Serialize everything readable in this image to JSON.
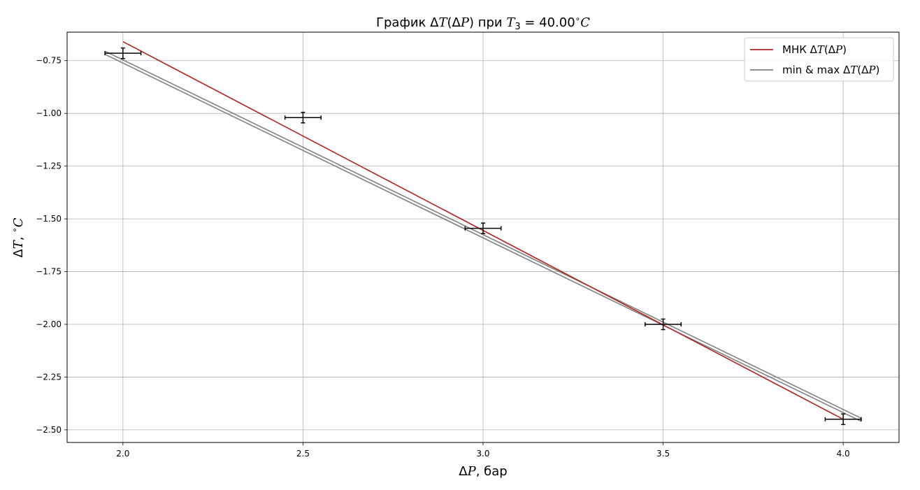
{
  "chart_data": {
    "type": "line",
    "title": "График ΔT(ΔP) при T₃ = 40.00°C",
    "title_parts": {
      "prefix": "График Δ",
      "t": "T",
      "open": "(Δ",
      "p": "P",
      "close": ") при ",
      "t3": "T",
      "sub": "3",
      "rest": " = 40.00",
      "deg": "∘",
      "c": "C"
    },
    "xlabel": "ΔP, бар",
    "xlabel_parts": {
      "delta": "Δ",
      "var": "P",
      "unit": ", бар"
    },
    "ylabel": "ΔT, °C",
    "ylabel_parts": {
      "delta": "Δ",
      "var": "T",
      "comma": ", ",
      "deg": "∘",
      "unit": "C"
    },
    "xlim": [
      1.845,
      4.155
    ],
    "ylim": [
      -2.56,
      -0.615
    ],
    "x_ticks": [
      2.0,
      2.5,
      3.0,
      3.5,
      4.0
    ],
    "x_tick_labels": [
      "2.0",
      "2.5",
      "3.0",
      "3.5",
      "4.0"
    ],
    "y_ticks": [
      -0.75,
      -1.0,
      -1.25,
      -1.5,
      -1.75,
      -2.0,
      -2.25,
      -2.5
    ],
    "y_tick_labels": [
      "−0.75",
      "−1.00",
      "−1.25",
      "−1.50",
      "−1.75",
      "−2.00",
      "−2.25",
      "−2.50"
    ],
    "grid": true,
    "legend_position": "top-right",
    "legend": [
      {
        "label": "МНК ΔT(ΔP)",
        "prefix": "МНК Δ",
        "v1": "T",
        "mid": "(Δ",
        "v2": "P",
        "end": ")",
        "color": "#b22222"
      },
      {
        "label": "min & max ΔT(ΔP)",
        "prefix": "min & max Δ",
        "v1": "T",
        "mid": "(Δ",
        "v2": "P",
        "end": ")",
        "color": "#808080"
      }
    ],
    "points": {
      "x": [
        2.0,
        2.5,
        3.0,
        3.5,
        4.0
      ],
      "y": [
        -0.715,
        -1.02,
        -1.545,
        -2.0,
        -2.45
      ],
      "x_err": 0.05,
      "y_err": 0.025,
      "color": "#000000"
    },
    "series": [
      {
        "name": "МНК ΔT(ΔP)",
        "color": "#b22222",
        "x": [
          2.0,
          4.0
        ],
        "y": [
          -0.66,
          -2.45
        ]
      },
      {
        "name": "min & max ΔT(ΔP)",
        "color": "#808080",
        "x": [
          1.95,
          4.05
        ],
        "y": [
          -0.72,
          -2.46
        ]
      },
      {
        "color": "#808080",
        "x": [
          1.95,
          4.05
        ],
        "y": [
          -0.705,
          -2.445
        ]
      }
    ]
  }
}
